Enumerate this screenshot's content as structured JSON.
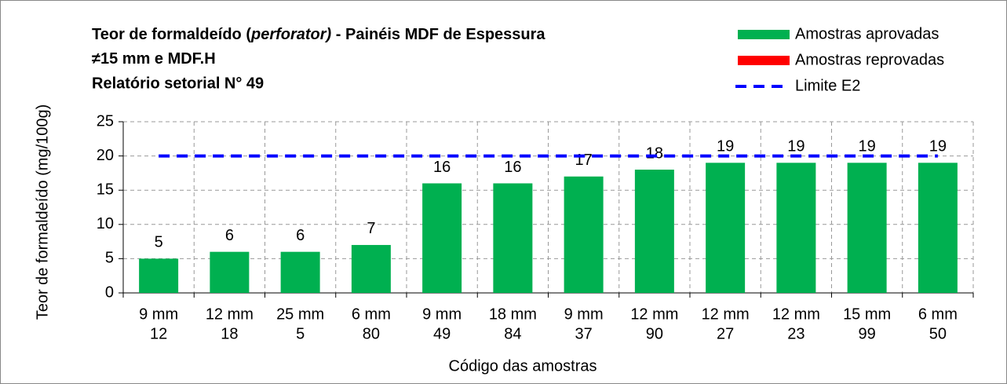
{
  "chart_data": {
    "type": "bar",
    "title_parts": [
      {
        "text": "Teor de formaldeído (",
        "italic": false
      },
      {
        "text": "perforator)",
        "italic": true
      },
      {
        "text": " - Painéis MDF de Espessura",
        "italic": false
      },
      {
        "text": "≠15 mm e MDF.H",
        "italic": false
      }
    ],
    "subtitle": "Relatório setorial N° 49",
    "y_label": "Teor de formaldeído (mg/100g)",
    "x_label": "Código das amostras",
    "categories": [
      [
        "9 mm",
        "12"
      ],
      [
        "12 mm",
        "18"
      ],
      [
        "25 mm",
        "5"
      ],
      [
        "6 mm",
        "80"
      ],
      [
        "9 mm",
        "49"
      ],
      [
        "18 mm",
        "84"
      ],
      [
        "9 mm",
        "37"
      ],
      [
        "12 mm",
        "90"
      ],
      [
        "12 mm",
        "27"
      ],
      [
        "12 mm",
        "23"
      ],
      [
        "15 mm",
        "99"
      ],
      [
        "6 mm",
        "50"
      ]
    ],
    "series": [
      {
        "name": "Amostras aprovadas",
        "type": "bar",
        "color": "#00b050",
        "values": [
          5,
          6,
          6,
          7,
          16,
          16,
          17,
          18,
          19,
          19,
          19,
          19
        ]
      },
      {
        "name": "Amostras reprovadas",
        "type": "bar",
        "color": "#ff0000",
        "values": [
          null,
          null,
          null,
          null,
          null,
          null,
          null,
          null,
          null,
          null,
          null,
          null
        ]
      },
      {
        "name": "Limite E2",
        "type": "line",
        "color": "#0000ff",
        "dashed": true,
        "values": [
          20,
          20,
          20,
          20,
          20,
          20,
          20,
          20,
          20,
          20,
          20,
          20
        ]
      }
    ],
    "ylim": [
      0,
      25
    ],
    "yticks": [
      0,
      5,
      10,
      15,
      20,
      25
    ],
    "grid": true,
    "legend": "top-right"
  }
}
